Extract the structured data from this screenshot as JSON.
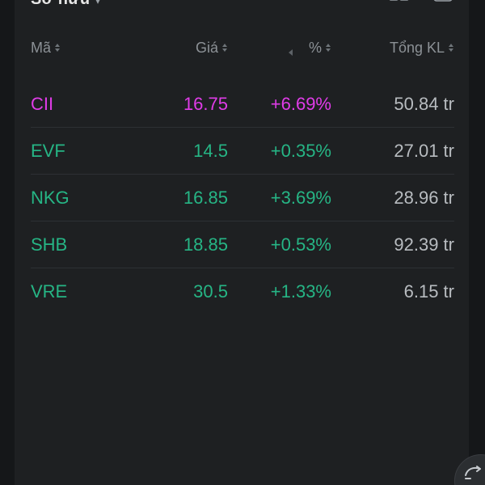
{
  "header": {
    "owned_label": "Sở hữu",
    "caret": "▾"
  },
  "columns": {
    "code": "Mã",
    "price": "Giá",
    "pct": "%",
    "volume": "Tổng KL"
  },
  "colors": {
    "up": "#26b585",
    "ceiling": "#e03ce8",
    "volume": "#b8bcc0"
  },
  "rows": [
    {
      "code": "CII",
      "price": "16.75",
      "pct": "+6.69%",
      "volume": "50.84 tr",
      "status": "ceiling"
    },
    {
      "code": "EVF",
      "price": "14.5",
      "pct": "+0.35%",
      "volume": "27.01 tr",
      "status": "up"
    },
    {
      "code": "NKG",
      "price": "16.85",
      "pct": "+3.69%",
      "volume": "28.96 tr",
      "status": "up"
    },
    {
      "code": "SHB",
      "price": "18.85",
      "pct": "+0.53%",
      "volume": "92.39 tr",
      "status": "up"
    },
    {
      "code": "VRE",
      "price": "30.5",
      "pct": "+1.33%",
      "volume": "6.15 tr",
      "status": "up"
    }
  ],
  "icons": {
    "view_toggle": "grid-view-icon",
    "expand": "expand-icon",
    "sort": "sort-icon",
    "fab": "chart-toggle-icon"
  }
}
